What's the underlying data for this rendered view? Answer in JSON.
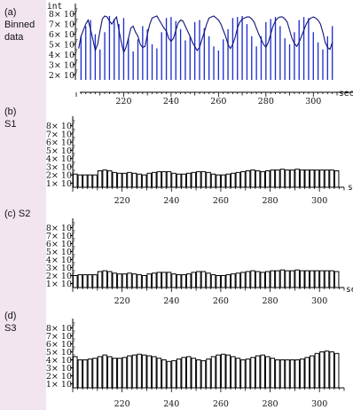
{
  "panels": [
    {
      "id": "a",
      "label": "(a)\nBinned\ndata"
    },
    {
      "id": "b",
      "label": "(b)\nS1"
    },
    {
      "id": "c",
      "label": "(c) S2"
    },
    {
      "id": "d",
      "label": "(d)\nS3"
    }
  ],
  "colors": {
    "page_bg": "#f3e5ef",
    "binned_line": "#1f2fd0",
    "bar_outline": "#000000"
  },
  "chart_data": [
    {
      "type": "bar",
      "title": "",
      "ylabel": "int",
      "xlabel": "sec",
      "ylim": [
        15000000,
        85000000
      ],
      "xlim": [
        200,
        310
      ],
      "y_tick_labels": [
        "2× 10",
        "3× 10",
        "4× 10",
        "5× 10",
        "6× 10",
        "7× 10",
        "8× 10"
      ],
      "y_tick_values": [
        20000000,
        30000000,
        40000000,
        50000000,
        60000000,
        70000000,
        80000000
      ],
      "y_tick_exponent": "7",
      "x_ticks": [
        220,
        240,
        260,
        280,
        300
      ],
      "bar_start": 202,
      "bar_step": 2,
      "bar_width_fraction": 0.25,
      "values": [
        58000000,
        68000000,
        74000000,
        60000000,
        45000000,
        62000000,
        78000000,
        75000000,
        70000000,
        76000000,
        56000000,
        43000000,
        55000000,
        68000000,
        65000000,
        50000000,
        46000000,
        62000000,
        76000000,
        77000000,
        73000000,
        65000000,
        54000000,
        58000000,
        72000000,
        74000000,
        66000000,
        58000000,
        48000000,
        44000000,
        55000000,
        65000000,
        76000000,
        77000000,
        78000000,
        70000000,
        58000000,
        48000000,
        58000000,
        72000000,
        75000000,
        77000000,
        68000000,
        56000000,
        50000000,
        62000000,
        74000000,
        77000000,
        76000000,
        62000000,
        52000000,
        45000000,
        58000000,
        68000000
      ],
      "line_x": [
        201,
        202,
        204,
        205,
        206,
        207,
        208,
        209,
        210,
        211,
        212,
        213,
        214,
        215,
        216,
        217,
        218,
        219,
        220,
        221,
        222,
        223,
        224,
        225,
        226,
        227,
        228,
        229,
        230,
        231,
        232,
        233,
        234,
        235,
        236,
        237,
        238,
        239,
        240,
        241,
        242,
        243,
        244,
        245,
        246,
        247,
        248,
        249,
        250,
        251,
        252,
        253,
        254,
        255,
        256,
        257,
        258,
        259,
        260,
        261,
        262,
        263,
        264,
        265,
        266,
        267,
        268,
        269,
        270,
        271,
        272,
        273,
        274,
        275,
        276,
        277,
        278,
        279,
        280,
        281,
        282,
        283,
        284,
        285,
        286,
        287,
        288,
        289,
        290,
        291,
        292,
        293,
        294,
        295,
        296,
        297,
        298,
        299,
        300,
        301,
        302,
        303,
        304,
        305,
        306,
        307,
        308
      ],
      "line_y": [
        46000000,
        58000000,
        70000000,
        74000000,
        65000000,
        55000000,
        44000000,
        50000000,
        63000000,
        75000000,
        78000000,
        77000000,
        73000000,
        70000000,
        74000000,
        77000000,
        64000000,
        52000000,
        42000000,
        47000000,
        56000000,
        66000000,
        68000000,
        62000000,
        58000000,
        50000000,
        47000000,
        48000000,
        60000000,
        70000000,
        76000000,
        77000000,
        78000000,
        74000000,
        70000000,
        66000000,
        63000000,
        56000000,
        53000000,
        56000000,
        64000000,
        71000000,
        74000000,
        73000000,
        68000000,
        63000000,
        58000000,
        52000000,
        48000000,
        44000000,
        47000000,
        55000000,
        62000000,
        70000000,
        76000000,
        77000000,
        78000000,
        76000000,
        74000000,
        70000000,
        64000000,
        58000000,
        50000000,
        46000000,
        50000000,
        57000000,
        66000000,
        72000000,
        75000000,
        76000000,
        77000000,
        77000000,
        75000000,
        72000000,
        66000000,
        60000000,
        55000000,
        50000000,
        47000000,
        52000000,
        60000000,
        68000000,
        73000000,
        76000000,
        77000000,
        77000000,
        75000000,
        72000000,
        64000000,
        56000000,
        51000000,
        48000000,
        52000000,
        58000000,
        64000000,
        70000000,
        74000000,
        76000000,
        77000000,
        76000000,
        74000000,
        70000000,
        62000000,
        52000000,
        47000000,
        45000000,
        52000000
      ]
    },
    {
      "type": "bar",
      "title": "",
      "ylabel": "",
      "xlabel": "s",
      "ylim": [
        5000000,
        85000000
      ],
      "xlim": [
        200,
        310
      ],
      "y_tick_labels": [
        "1× 10",
        "2× 10",
        "3× 10",
        "4× 10",
        "5× 10",
        "6× 10",
        "7× 10",
        "8× 10"
      ],
      "y_tick_values": [
        10000000,
        20000000,
        30000000,
        40000000,
        50000000,
        60000000,
        70000000,
        80000000
      ],
      "y_tick_exponent": "7",
      "x_ticks": [
        220,
        240,
        260,
        280,
        300
      ],
      "bar_start": 201,
      "bar_step": 2,
      "bar_width_fraction": 1,
      "values": [
        21000000,
        20000000,
        20000000,
        20000000,
        20000000,
        25000000,
        26000000,
        25000000,
        23000000,
        22000000,
        22000000,
        23000000,
        22000000,
        21000000,
        20000000,
        22000000,
        23000000,
        24000000,
        24000000,
        24000000,
        22000000,
        21000000,
        21000000,
        22000000,
        23000000,
        24000000,
        24000000,
        23000000,
        21000000,
        20000000,
        20000000,
        21000000,
        22000000,
        23000000,
        24000000,
        25000000,
        26000000,
        25000000,
        24000000,
        25000000,
        26000000,
        26000000,
        27000000,
        26000000,
        26000000,
        27000000,
        26000000,
        26000000,
        26000000,
        26000000,
        26000000,
        26000000,
        26000000,
        25000000
      ]
    },
    {
      "type": "bar",
      "title": "",
      "ylabel": "",
      "xlabel": "se",
      "ylim": [
        5000000,
        85000000
      ],
      "xlim": [
        200,
        310
      ],
      "y_tick_labels": [
        "1× 10",
        "2× 10",
        "3× 10",
        "4× 10",
        "5× 10",
        "6× 10",
        "7× 10",
        "8× 10"
      ],
      "y_tick_values": [
        10000000,
        20000000,
        30000000,
        40000000,
        50000000,
        60000000,
        70000000,
        80000000
      ],
      "y_tick_exponent": "7",
      "x_ticks": [
        220,
        240,
        260,
        280,
        300
      ],
      "bar_start": 201,
      "bar_step": 2,
      "bar_width_fraction": 1,
      "values": [
        20000000,
        21000000,
        21000000,
        21000000,
        21000000,
        25000000,
        26000000,
        25000000,
        23000000,
        22000000,
        22000000,
        23000000,
        22000000,
        21000000,
        20000000,
        22000000,
        23000000,
        24000000,
        24000000,
        24000000,
        22000000,
        21000000,
        21000000,
        22000000,
        24000000,
        25000000,
        25000000,
        23000000,
        21000000,
        20000000,
        20000000,
        21000000,
        22000000,
        23000000,
        24000000,
        25000000,
        26000000,
        25000000,
        24000000,
        25000000,
        26000000,
        26000000,
        27000000,
        26000000,
        26000000,
        27000000,
        26000000,
        26000000,
        26000000,
        26000000,
        26000000,
        26000000,
        26000000,
        25000000
      ]
    },
    {
      "type": "bar",
      "title": "",
      "ylabel": "",
      "xlabel": "",
      "ylim": [
        5000000,
        85000000
      ],
      "xlim": [
        200,
        310
      ],
      "y_tick_labels": [
        "1× 10",
        "2× 10",
        "3× 10",
        "4× 10",
        "5× 10",
        "6× 10",
        "7× 10",
        "8× 10"
      ],
      "y_tick_values": [
        10000000,
        20000000,
        30000000,
        40000000,
        50000000,
        60000000,
        70000000,
        80000000
      ],
      "y_tick_exponent": "7",
      "x_ticks": [
        220,
        240,
        260,
        280,
        300
      ],
      "bar_start": 201,
      "bar_step": 2,
      "bar_width_fraction": 1,
      "values": [
        44000000,
        40000000,
        40000000,
        41000000,
        42000000,
        44000000,
        46000000,
        44000000,
        42000000,
        42000000,
        43000000,
        45000000,
        46000000,
        47000000,
        46000000,
        45000000,
        44000000,
        42000000,
        40000000,
        38000000,
        39000000,
        41000000,
        43000000,
        44000000,
        42000000,
        40000000,
        39000000,
        41000000,
        44000000,
        46000000,
        47000000,
        46000000,
        44000000,
        42000000,
        40000000,
        41000000,
        43000000,
        45000000,
        46000000,
        44000000,
        42000000,
        40000000,
        40000000,
        40000000,
        40000000,
        40000000,
        41000000,
        43000000,
        45000000,
        48000000,
        50000000,
        51000000,
        50000000,
        48000000
      ]
    }
  ]
}
